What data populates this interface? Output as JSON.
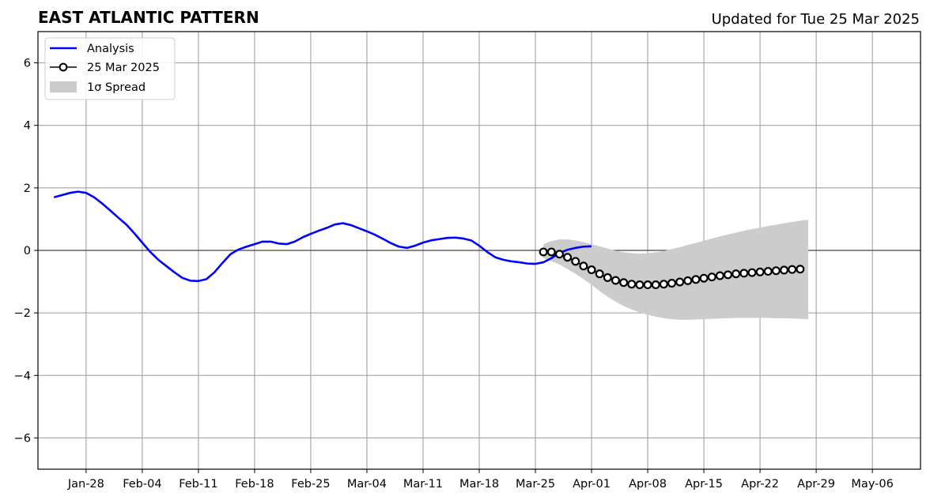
{
  "chart_data": {
    "type": "line",
    "title": "EAST ATLANTIC PATTERN",
    "subtitle": "Updated for Tue 25 Mar 2025",
    "xlabel": "",
    "ylabel": "",
    "xlim": [
      "2025-01-22",
      "2025-05-12"
    ],
    "ylim": [
      -7,
      7
    ],
    "grid": true,
    "legend_position": "top-left",
    "x_ticks": [
      "Jan-28",
      "Feb-04",
      "Feb-11",
      "Feb-18",
      "Feb-25",
      "Mar-04",
      "Mar-11",
      "Mar-18",
      "Mar-25",
      "Apr-01",
      "Apr-08",
      "Apr-15",
      "Apr-22",
      "Apr-29",
      "May-06"
    ],
    "x_tick_dates": [
      "2025-01-28",
      "2025-02-04",
      "2025-02-11",
      "2025-02-18",
      "2025-02-25",
      "2025-03-04",
      "2025-03-11",
      "2025-03-18",
      "2025-03-25",
      "2025-04-01",
      "2025-04-08",
      "2025-04-15",
      "2025-04-22",
      "2025-04-29",
      "2025-05-06"
    ],
    "y_ticks": [
      "6",
      "4",
      "2",
      "0",
      "−2",
      "−4",
      "−6"
    ],
    "y_tick_values": [
      6,
      4,
      2,
      0,
      -2,
      -4,
      -6
    ],
    "series": [
      {
        "name": "Analysis",
        "color": "#0000ff",
        "style": "line",
        "start_date": "2025-01-24",
        "values": [
          1.7,
          1.77,
          1.84,
          1.88,
          1.84,
          1.7,
          1.5,
          1.28,
          1.05,
          0.83,
          0.55,
          0.25,
          -0.05,
          -0.3,
          -0.5,
          -0.7,
          -0.88,
          -0.97,
          -0.98,
          -0.92,
          -0.7,
          -0.4,
          -0.12,
          0.03,
          0.12,
          0.2,
          0.28,
          0.28,
          0.22,
          0.2,
          0.28,
          0.42,
          0.53,
          0.63,
          0.72,
          0.83,
          0.87,
          0.81,
          0.71,
          0.61,
          0.5,
          0.37,
          0.23,
          0.12,
          0.08,
          0.15,
          0.25,
          0.32,
          0.36,
          0.4,
          0.41,
          0.38,
          0.32,
          0.15,
          -0.05,
          -0.22,
          -0.3,
          -0.35,
          -0.38,
          -0.42,
          -0.43,
          -0.38,
          -0.25,
          -0.08,
          0.02,
          0.08,
          0.12,
          0.13
        ]
      },
      {
        "name": "25 Mar 2025",
        "color": "#000000",
        "style": "line-markers",
        "start_date": "2025-03-26",
        "values": [
          -0.05,
          -0.05,
          -0.12,
          -0.22,
          -0.35,
          -0.5,
          -0.62,
          -0.75,
          -0.87,
          -0.96,
          -1.03,
          -1.08,
          -1.1,
          -1.1,
          -1.1,
          -1.08,
          -1.05,
          -1.01,
          -0.97,
          -0.93,
          -0.89,
          -0.85,
          -0.81,
          -0.78,
          -0.75,
          -0.73,
          -0.71,
          -0.69,
          -0.67,
          -0.65,
          -0.63,
          -0.61,
          -0.6
        ]
      }
    ],
    "spread": {
      "name": "1σ Spread",
      "color": "#cccccc",
      "start_date": "2025-03-26",
      "upper": [
        0.2,
        0.3,
        0.35,
        0.35,
        0.32,
        0.27,
        0.2,
        0.13,
        0.06,
        -0.01,
        -0.06,
        -0.09,
        -0.1,
        -0.09,
        -0.06,
        -0.02,
        0.04,
        0.1,
        0.17,
        0.24,
        0.31,
        0.38,
        0.45,
        0.51,
        0.57,
        0.63,
        0.68,
        0.73,
        0.78,
        0.82,
        0.87,
        0.91,
        0.95,
        0.98
      ],
      "lower": [
        -0.25,
        -0.35,
        -0.45,
        -0.6,
        -0.75,
        -0.92,
        -1.1,
        -1.3,
        -1.48,
        -1.64,
        -1.78,
        -1.89,
        -1.98,
        -2.06,
        -2.12,
        -2.17,
        -2.2,
        -2.22,
        -2.22,
        -2.21,
        -2.2,
        -2.19,
        -2.18,
        -2.17,
        -2.16,
        -2.16,
        -2.16,
        -2.16,
        -2.16,
        -2.17,
        -2.17,
        -2.18,
        -2.19,
        -2.2
      ]
    }
  }
}
